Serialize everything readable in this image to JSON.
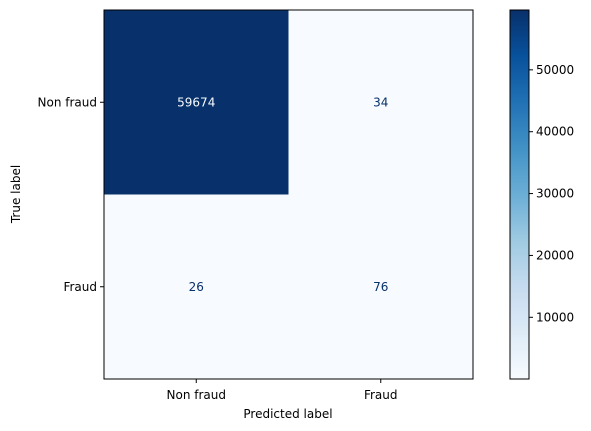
{
  "chart_data": {
    "type": "heatmap",
    "title": "",
    "xlabel": "Predicted label",
    "ylabel": "True label",
    "x_categories": [
      "Non fraud",
      "Fraud"
    ],
    "y_categories": [
      "Non fraud",
      "Fraud"
    ],
    "matrix": [
      [
        59674,
        34
      ],
      [
        26,
        76
      ]
    ],
    "cell_labels": [
      [
        "59674",
        "34"
      ],
      [
        "26",
        "76"
      ]
    ],
    "colormap": "Blues",
    "colorbar": {
      "ticks": [
        10000,
        20000,
        30000,
        40000,
        50000
      ],
      "tick_labels": [
        "10000",
        "20000",
        "30000",
        "40000",
        "50000"
      ],
      "range": [
        26,
        59674
      ]
    },
    "grid": false,
    "legend": "colorbar-right"
  }
}
